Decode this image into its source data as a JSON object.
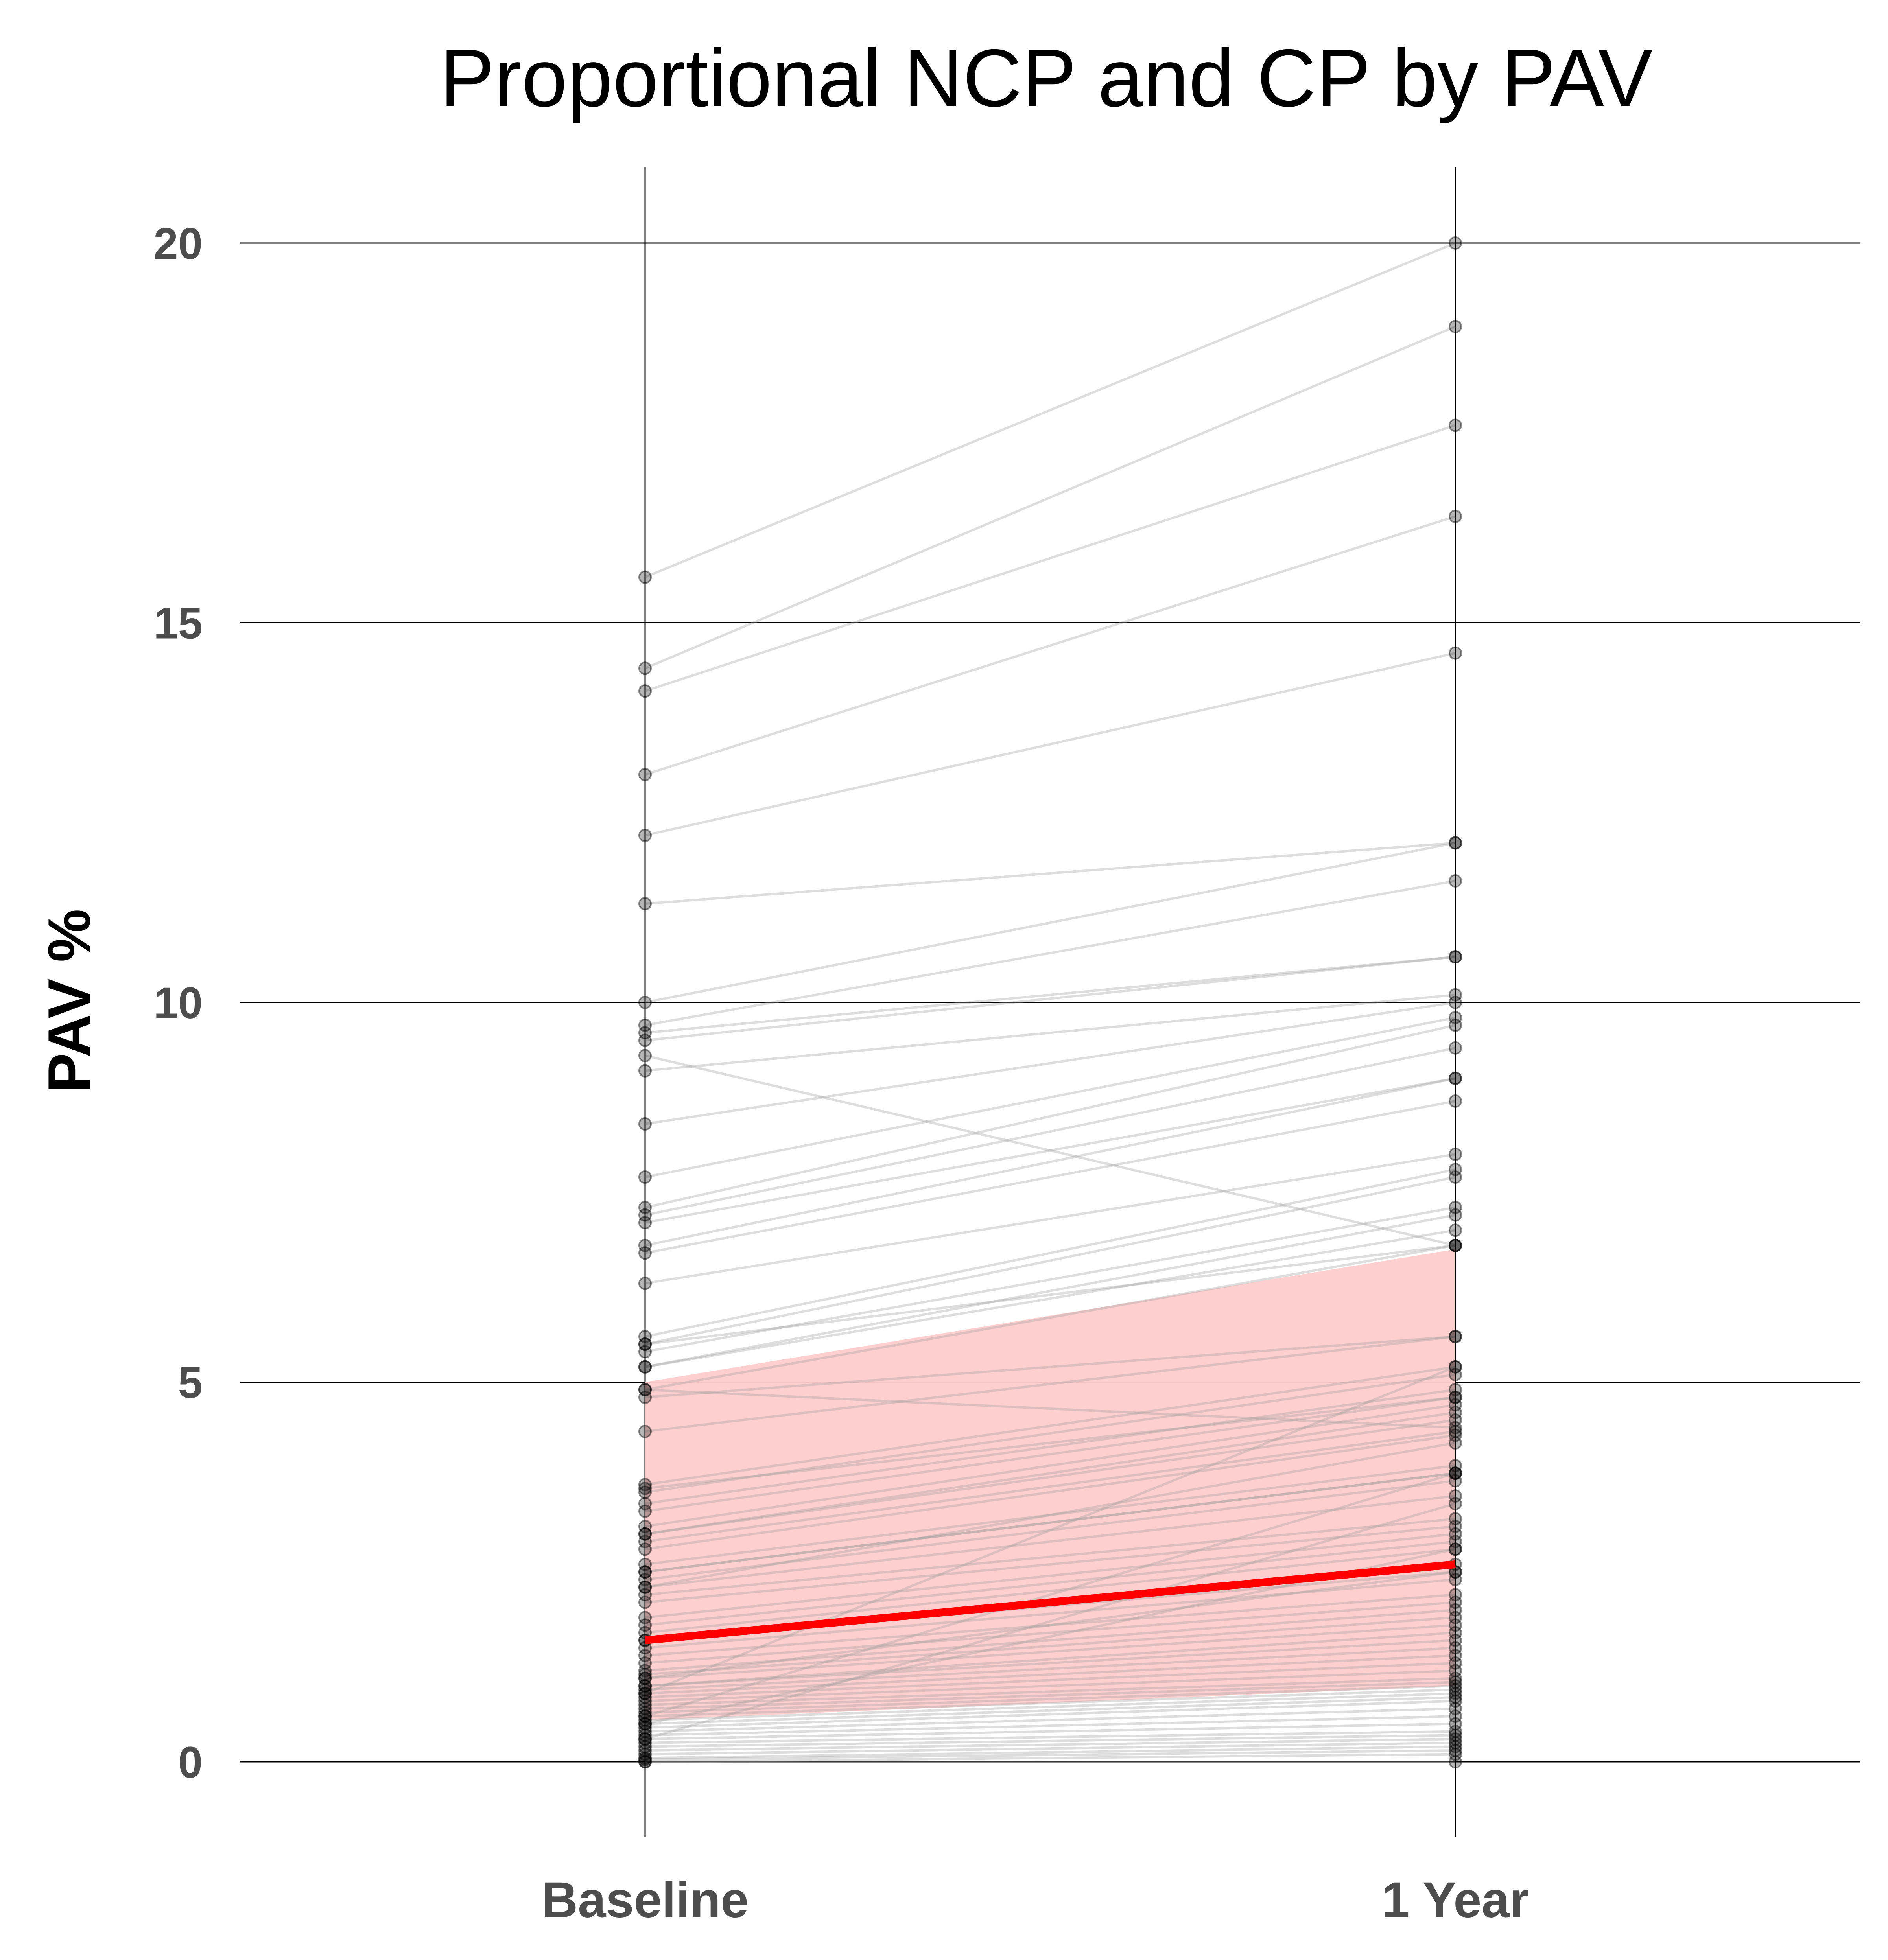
{
  "chart_data": {
    "type": "line",
    "title": "Proportional NCP and CP by PAV",
    "xlabel": "",
    "ylabel": "PAV %",
    "categories": [
      "Baseline",
      "1 Year"
    ],
    "ylim": [
      -1.0,
      21.0
    ],
    "yticks": [
      0,
      5,
      10,
      15,
      20
    ],
    "grid": true,
    "colors": {
      "individual": "#bdbdbd",
      "point": "#000000",
      "mean": "#ff0000",
      "band": "#ffcccc"
    },
    "mean_series": {
      "values": [
        1.6,
        2.6
      ]
    },
    "band": {
      "lower": [
        0.55,
        1.0
      ],
      "upper": [
        5.0,
        6.75
      ]
    },
    "subjects": [
      [
        15.6,
        20.0
      ],
      [
        14.4,
        18.9
      ],
      [
        14.1,
        17.6
      ],
      [
        13.0,
        16.4
      ],
      [
        12.2,
        14.6
      ],
      [
        11.3,
        12.1
      ],
      [
        10.0,
        12.1
      ],
      [
        9.7,
        11.6
      ],
      [
        9.6,
        10.6
      ],
      [
        9.5,
        10.6
      ],
      [
        9.3,
        6.8
      ],
      [
        9.1,
        10.1
      ],
      [
        8.4,
        10.0
      ],
      [
        7.7,
        9.8
      ],
      [
        7.3,
        9.7
      ],
      [
        7.2,
        9.4
      ],
      [
        7.1,
        9.0
      ],
      [
        6.8,
        9.0
      ],
      [
        6.7,
        8.7
      ],
      [
        6.3,
        8.0
      ],
      [
        5.6,
        7.8
      ],
      [
        5.5,
        7.7
      ],
      [
        5.4,
        7.3
      ],
      [
        5.2,
        7.2
      ],
      [
        5.2,
        7.0
      ],
      [
        4.9,
        6.8
      ],
      [
        4.8,
        5.6
      ],
      [
        4.35,
        5.6
      ],
      [
        3.65,
        5.2
      ],
      [
        3.55,
        5.1
      ],
      [
        3.4,
        4.9
      ],
      [
        3.3,
        4.8
      ],
      [
        3.1,
        4.7
      ],
      [
        3.0,
        4.6
      ],
      [
        3.0,
        4.5
      ],
      [
        2.9,
        4.35
      ],
      [
        2.8,
        4.3
      ],
      [
        2.6,
        3.9
      ],
      [
        2.5,
        3.8
      ],
      [
        2.4,
        3.7
      ],
      [
        2.3,
        3.5
      ],
      [
        2.2,
        3.2
      ],
      [
        2.1,
        3.1
      ],
      [
        1.9,
        3.0
      ],
      [
        1.8,
        2.9
      ],
      [
        1.7,
        2.8
      ],
      [
        1.6,
        2.6
      ],
      [
        1.6,
        2.5
      ],
      [
        1.5,
        2.4
      ],
      [
        1.4,
        2.2
      ],
      [
        1.3,
        2.1
      ],
      [
        1.2,
        2.0
      ],
      [
        1.15,
        1.9
      ],
      [
        1.1,
        1.8
      ],
      [
        1.0,
        1.7
      ],
      [
        1.0,
        1.6
      ],
      [
        0.95,
        1.5
      ],
      [
        0.9,
        1.4
      ],
      [
        0.85,
        1.3
      ],
      [
        0.8,
        1.2
      ],
      [
        0.75,
        1.1
      ],
      [
        0.7,
        1.05
      ],
      [
        0.65,
        1.0
      ],
      [
        0.6,
        0.95
      ],
      [
        0.55,
        0.9
      ],
      [
        0.5,
        0.85
      ],
      [
        0.45,
        0.8
      ],
      [
        0.4,
        0.7
      ],
      [
        0.35,
        0.6
      ],
      [
        0.3,
        0.5
      ],
      [
        0.25,
        0.4
      ],
      [
        0.2,
        0.35
      ],
      [
        0.15,
        0.3
      ],
      [
        0.1,
        0.25
      ],
      [
        0.05,
        0.2
      ],
      [
        0.03,
        0.15
      ],
      [
        0.0,
        0.1
      ],
      [
        0.0,
        0.0
      ],
      [
        5.5,
        6.8
      ],
      [
        4.9,
        4.4
      ],
      [
        3.6,
        4.8
      ],
      [
        2.5,
        3.8
      ],
      [
        2.3,
        4.2
      ],
      [
        1.1,
        2.5
      ],
      [
        0.6,
        3.8
      ],
      [
        0.3,
        3.4
      ],
      [
        0.9,
        5.2
      ],
      [
        0.5,
        2.8
      ]
    ]
  }
}
